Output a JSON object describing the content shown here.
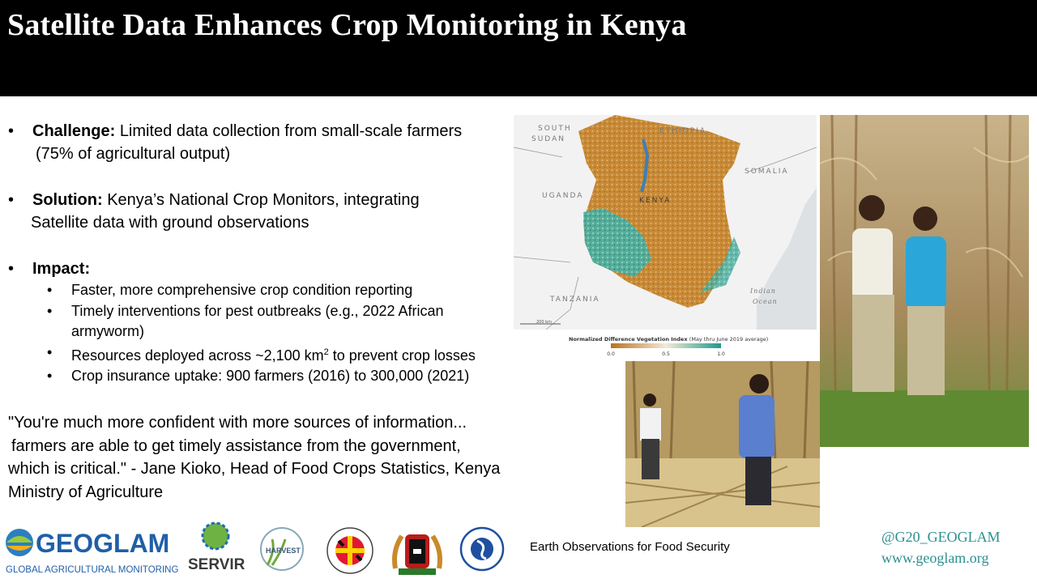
{
  "title": "Satellite Data Enhances Crop Monitoring in Kenya",
  "challenge": {
    "label": "Challenge:",
    "text": "Limited data collection from small-scale farmers",
    "text2": "(75% of agricultural output)"
  },
  "solution": {
    "label": "Solution:",
    "text": "Kenya’s National Crop Monitors, integrating",
    "text2": "Satellite data with ground observations"
  },
  "impact": {
    "label": "Impact:",
    "items": [
      "Faster, more comprehensive crop condition reporting",
      "Timely interventions for pest outbreaks (e.g., 2022 African armyworm)",
      "Resources deployed across ~2,100 km² to prevent crop losses",
      "Crop insurance uptake: 900 farmers (2016) to 300,000 (2021)"
    ]
  },
  "quote": {
    "line1": "\"You're much more confident with more sources of information...",
    "line2": "farmers are able to get timely assistance from the government,",
    "line3": "which is critical.\" - Jane Kioko, Head of Food Crops Statistics, Kenya",
    "line4": "Ministry of Agriculture"
  },
  "map": {
    "labels": {
      "south_sudan_1": "SOUTH",
      "south_sudan_2": "SUDAN",
      "ethiopia": "ETHIOPIA",
      "somalia": "SOMALIA",
      "uganda": "UGANDA",
      "kenya": "KENYA",
      "tanzania": "TANZANIA",
      "ocean_1": "Indian",
      "ocean_2": "Ocean"
    },
    "scale": "200 km",
    "legend_title": "Normalized Difference Vegetation Index",
    "legend_note": "(May thru June 2019 average)",
    "legend_ticks": [
      "0.0",
      "0.5",
      "1.0"
    ],
    "colors": {
      "low": "#b9721c",
      "mid": "#f3ead6",
      "high": "#1d9a8c"
    }
  },
  "logos": {
    "geoglam": "GEOGLAM",
    "geoglam_sub": "GLOBAL AGRICULTURAL MONITORING",
    "servir": "SERVIR",
    "harvest": "HARVEST",
    "umd_ring": "UNIVERSITY OF MARYLAND"
  },
  "tagline": "Earth Observations for Food Security",
  "social": {
    "handle": "@G20_GEOGLAM",
    "site": "www.geoglam.org"
  }
}
